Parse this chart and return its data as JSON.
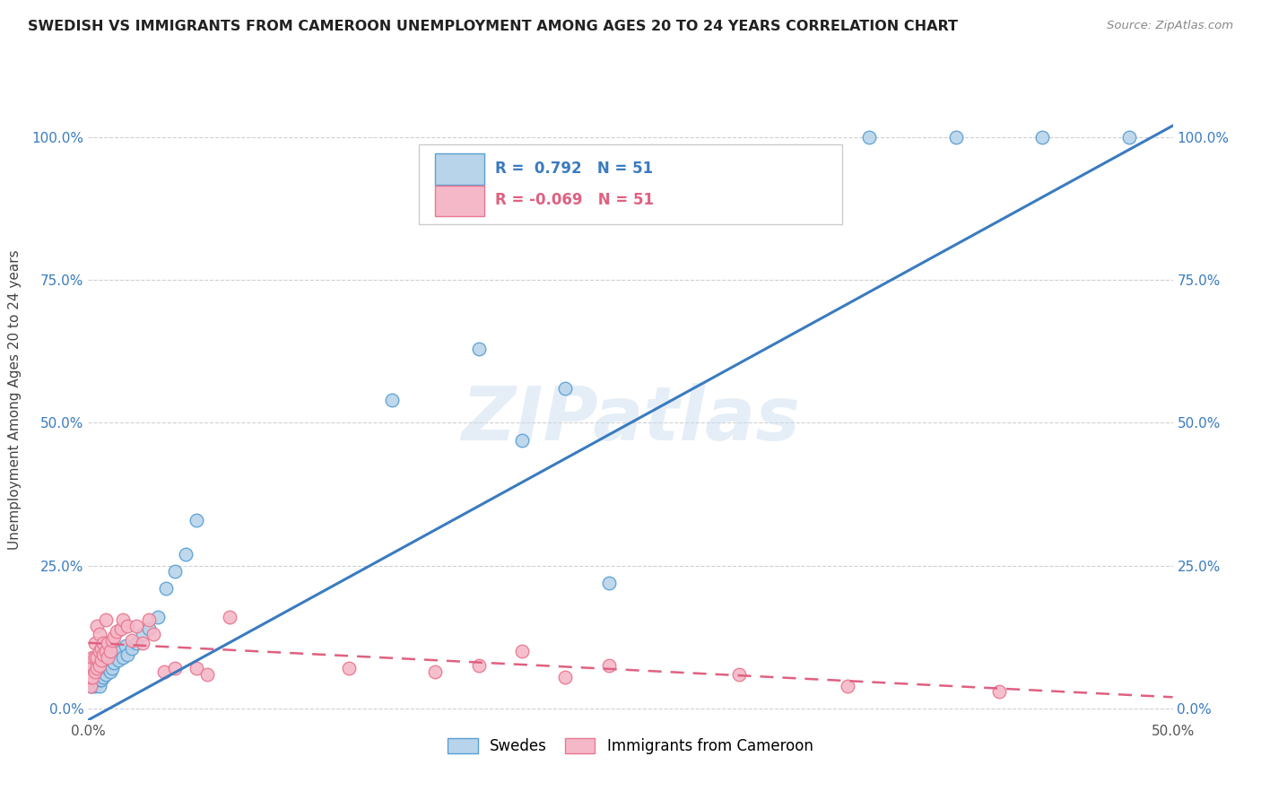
{
  "title": "SWEDISH VS IMMIGRANTS FROM CAMEROON UNEMPLOYMENT AMONG AGES 20 TO 24 YEARS CORRELATION CHART",
  "source": "Source: ZipAtlas.com",
  "ylabel": "Unemployment Among Ages 20 to 24 years",
  "xlim": [
    0.0,
    0.5
  ],
  "ylim": [
    -0.02,
    1.1
  ],
  "xticks": [
    0.0,
    0.1,
    0.2,
    0.3,
    0.4,
    0.5
  ],
  "xticklabels": [
    "0.0%",
    "",
    "",
    "",
    "",
    "50.0%"
  ],
  "yticks": [
    0.0,
    0.25,
    0.5,
    0.75,
    1.0
  ],
  "yticklabels": [
    "0.0%",
    "25.0%",
    "50.0%",
    "75.0%",
    "100.0%"
  ],
  "legend_labels": [
    "Swedes",
    "Immigrants from Cameroon"
  ],
  "swedes_color": "#b8d4ea",
  "cameroon_color": "#f5b8c8",
  "swedes_edge_color": "#5a9fd4",
  "cameroon_edge_color": "#e87890",
  "swedes_line_color": "#3a7bbf",
  "cameroon_line_color": "#e06080",
  "R_swedes": 0.792,
  "N_swedes": 51,
  "R_cameroon": -0.069,
  "N_cameroon": 51,
  "watermark": "ZIPatlas",
  "swedes_x": [
    0.001,
    0.001,
    0.002,
    0.002,
    0.002,
    0.003,
    0.003,
    0.003,
    0.004,
    0.004,
    0.004,
    0.005,
    0.005,
    0.005,
    0.005,
    0.006,
    0.006,
    0.006,
    0.007,
    0.007,
    0.008,
    0.008,
    0.009,
    0.01,
    0.01,
    0.011,
    0.012,
    0.013,
    0.014,
    0.015,
    0.016,
    0.017,
    0.018,
    0.02,
    0.022,
    0.025,
    0.028,
    0.032,
    0.036,
    0.04,
    0.045,
    0.05,
    0.14,
    0.18,
    0.2,
    0.22,
    0.24,
    0.36,
    0.4,
    0.44,
    0.48
  ],
  "swedes_y": [
    0.04,
    0.05,
    0.04,
    0.05,
    0.06,
    0.04,
    0.05,
    0.06,
    0.05,
    0.055,
    0.065,
    0.04,
    0.05,
    0.055,
    0.07,
    0.05,
    0.06,
    0.065,
    0.055,
    0.07,
    0.06,
    0.075,
    0.07,
    0.065,
    0.08,
    0.07,
    0.08,
    0.09,
    0.085,
    0.1,
    0.09,
    0.11,
    0.095,
    0.105,
    0.115,
    0.13,
    0.14,
    0.16,
    0.21,
    0.24,
    0.27,
    0.33,
    0.54,
    0.63,
    0.47,
    0.56,
    0.22,
    1.0,
    1.0,
    1.0,
    1.0
  ],
  "cameroon_x": [
    0.0,
    0.0,
    0.001,
    0.001,
    0.001,
    0.002,
    0.002,
    0.002,
    0.003,
    0.003,
    0.003,
    0.004,
    0.004,
    0.004,
    0.005,
    0.005,
    0.005,
    0.006,
    0.006,
    0.007,
    0.007,
    0.008,
    0.008,
    0.009,
    0.009,
    0.01,
    0.011,
    0.012,
    0.013,
    0.015,
    0.016,
    0.018,
    0.02,
    0.022,
    0.025,
    0.028,
    0.03,
    0.035,
    0.04,
    0.05,
    0.055,
    0.065,
    0.12,
    0.16,
    0.18,
    0.2,
    0.22,
    0.24,
    0.3,
    0.35,
    0.42
  ],
  "cameroon_y": [
    0.05,
    0.065,
    0.04,
    0.055,
    0.07,
    0.055,
    0.075,
    0.09,
    0.065,
    0.09,
    0.115,
    0.07,
    0.09,
    0.145,
    0.075,
    0.1,
    0.13,
    0.085,
    0.105,
    0.095,
    0.115,
    0.1,
    0.155,
    0.09,
    0.115,
    0.1,
    0.12,
    0.125,
    0.135,
    0.14,
    0.155,
    0.145,
    0.12,
    0.145,
    0.115,
    0.155,
    0.13,
    0.065,
    0.07,
    0.07,
    0.06,
    0.16,
    0.07,
    0.065,
    0.075,
    0.1,
    0.055,
    0.075,
    0.06,
    0.04,
    0.03
  ],
  "swedes_line_x0": 0.0,
  "swedes_line_x1": 0.5,
  "swedes_line_y0": -0.02,
  "swedes_line_y1": 1.02,
  "cameroon_line_x0": 0.0,
  "cameroon_line_x1": 0.5,
  "cameroon_line_y0": 0.115,
  "cameroon_line_y1": 0.02
}
